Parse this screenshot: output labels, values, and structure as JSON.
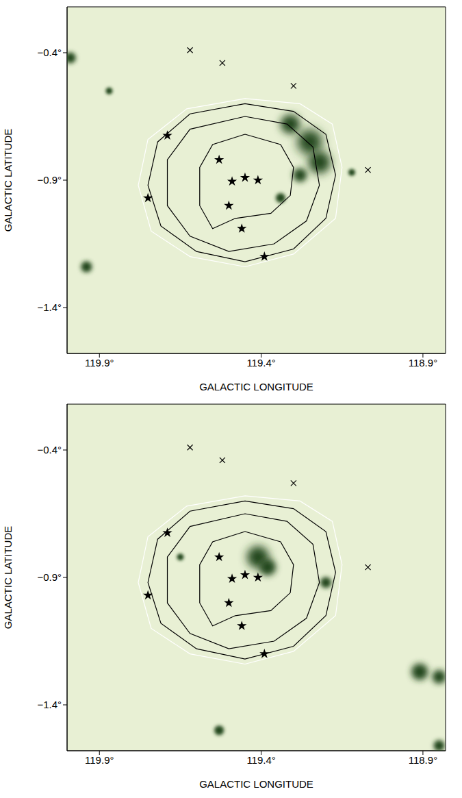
{
  "chart_data": [
    {
      "type": "scatter",
      "x_label": "GALACTIC LONGITUDE",
      "y_label": "GALACTIC LATITUDE",
      "xlim": [
        120.0,
        118.83
      ],
      "ylim": [
        -1.58,
        -0.22
      ],
      "xticks": [
        {
          "value": 119.9,
          "label": "119.9°"
        },
        {
          "value": 119.4,
          "label": "119.4°"
        },
        {
          "value": 118.9,
          "label": "118.9°"
        }
      ],
      "yticks": [
        {
          "value": -0.4,
          "label": "−0.4°"
        },
        {
          "value": -0.9,
          "label": "−0.9°"
        },
        {
          "value": -1.4,
          "label": "−1.4°"
        }
      ],
      "grid": false,
      "series": [
        {
          "type": "bubble",
          "color": "#24461a",
          "x": [
            119.31,
            119.25,
            119.22,
            119.28,
            119.34,
            119.99,
            119.94,
            119.87,
            119.12
          ],
          "values": [
            -0.68,
            -0.75,
            -0.83,
            -0.88,
            -0.97,
            -0.42,
            -1.24,
            -0.55,
            -0.87
          ],
          "size": [
            14,
            18,
            16,
            10,
            7,
            8,
            8,
            5,
            5
          ]
        },
        {
          "type": "line",
          "color": "#ffffff",
          "marker": "none",
          "line_style": "solid",
          "x": [
            119.45,
            119.28,
            119.18,
            119.15,
            119.17,
            119.3,
            119.45,
            119.62,
            119.74,
            119.78,
            119.75,
            119.63,
            119.45
          ],
          "values": [
            -0.58,
            -0.6,
            -0.68,
            -0.85,
            -1.05,
            -1.19,
            -1.24,
            -1.2,
            -1.1,
            -0.92,
            -0.74,
            -0.62,
            -0.58
          ]
        },
        {
          "type": "line",
          "color": "#000000",
          "marker": "none",
          "line_style": "solid",
          "x": [
            119.45,
            119.3,
            119.2,
            119.17,
            119.2,
            119.3,
            119.45,
            119.6,
            119.71,
            119.75,
            119.72,
            119.62,
            119.45
          ],
          "values": [
            -0.6,
            -0.63,
            -0.72,
            -0.88,
            -1.05,
            -1.17,
            -1.22,
            -1.18,
            -1.08,
            -0.92,
            -0.75,
            -0.64,
            -0.6
          ]
        },
        {
          "type": "line",
          "color": "#000000",
          "marker": "none",
          "line_style": "solid",
          "x": [
            119.45,
            119.32,
            119.24,
            119.22,
            119.26,
            119.36,
            119.5,
            119.62,
            119.69,
            119.69,
            119.62,
            119.45
          ],
          "values": [
            -0.65,
            -0.68,
            -0.77,
            -0.92,
            -1.06,
            -1.15,
            -1.18,
            -1.12,
            -1.0,
            -0.82,
            -0.7,
            -0.65
          ]
        },
        {
          "type": "line",
          "color": "#000000",
          "marker": "none",
          "line_style": "solid",
          "x": [
            119.45,
            119.34,
            119.3,
            119.31,
            119.37,
            119.48,
            119.55,
            119.59,
            119.59,
            119.55,
            119.45
          ],
          "values": [
            -0.72,
            -0.76,
            -0.85,
            -0.96,
            -1.03,
            -1.05,
            -1.09,
            -1.0,
            -0.85,
            -0.76,
            -0.72
          ]
        },
        {
          "type": "scatter",
          "color": "#000000",
          "marker": "star",
          "x": [
            119.69,
            119.53,
            119.49,
            119.45,
            119.41,
            119.5,
            119.46,
            119.39,
            119.75
          ],
          "values": [
            -0.725,
            -0.82,
            -0.905,
            -0.89,
            -0.9,
            -1.0,
            -1.09,
            -1.2,
            -0.97
          ]
        },
        {
          "type": "scatter",
          "color": "#000000",
          "marker": "x",
          "x": [
            119.62,
            119.52,
            119.3,
            119.07
          ],
          "values": [
            -0.39,
            -0.44,
            -0.53,
            -0.86
          ]
        }
      ]
    },
    {
      "type": "scatter",
      "x_label": "GALACTIC LONGITUDE",
      "y_label": "GALACTIC LATITUDE",
      "xlim": [
        120.0,
        118.83
      ],
      "ylim": [
        -1.58,
        -0.22
      ],
      "xticks": [
        {
          "value": 119.9,
          "label": "119.9°"
        },
        {
          "value": 119.4,
          "label": "119.4°"
        },
        {
          "value": 118.9,
          "label": "118.9°"
        }
      ],
      "yticks": [
        {
          "value": -0.4,
          "label": "−0.4°"
        },
        {
          "value": -0.9,
          "label": "−0.9°"
        },
        {
          "value": -1.4,
          "label": "−1.4°"
        }
      ],
      "grid": false,
      "series": [
        {
          "type": "bubble",
          "color": "#24461a",
          "x": [
            119.41,
            119.38,
            119.2,
            118.91,
            118.85,
            119.53,
            118.85,
            119.65
          ],
          "values": [
            -0.82,
            -0.86,
            -0.92,
            -1.27,
            -1.29,
            -1.5,
            -1.56,
            -0.82
          ],
          "size": [
            16,
            12,
            8,
            12,
            10,
            7,
            8,
            5
          ]
        },
        {
          "type": "line",
          "color": "#ffffff",
          "marker": "none",
          "line_style": "solid",
          "x": [
            119.45,
            119.28,
            119.18,
            119.15,
            119.17,
            119.3,
            119.45,
            119.62,
            119.74,
            119.78,
            119.75,
            119.63,
            119.45
          ],
          "values": [
            -0.58,
            -0.6,
            -0.68,
            -0.85,
            -1.05,
            -1.19,
            -1.24,
            -1.2,
            -1.1,
            -0.92,
            -0.74,
            -0.62,
            -0.58
          ]
        },
        {
          "type": "line",
          "color": "#000000",
          "marker": "none",
          "line_style": "solid",
          "x": [
            119.45,
            119.3,
            119.2,
            119.17,
            119.2,
            119.3,
            119.45,
            119.6,
            119.71,
            119.75,
            119.72,
            119.62,
            119.45
          ],
          "values": [
            -0.6,
            -0.63,
            -0.72,
            -0.88,
            -1.05,
            -1.17,
            -1.22,
            -1.18,
            -1.08,
            -0.92,
            -0.75,
            -0.64,
            -0.6
          ]
        },
        {
          "type": "line",
          "color": "#000000",
          "marker": "none",
          "line_style": "solid",
          "x": [
            119.45,
            119.32,
            119.24,
            119.22,
            119.26,
            119.36,
            119.5,
            119.62,
            119.69,
            119.69,
            119.62,
            119.45
          ],
          "values": [
            -0.65,
            -0.68,
            -0.77,
            -0.92,
            -1.06,
            -1.15,
            -1.18,
            -1.12,
            -1.0,
            -0.82,
            -0.7,
            -0.65
          ]
        },
        {
          "type": "line",
          "color": "#000000",
          "marker": "none",
          "line_style": "solid",
          "x": [
            119.45,
            119.34,
            119.3,
            119.31,
            119.37,
            119.48,
            119.55,
            119.59,
            119.59,
            119.55,
            119.45
          ],
          "values": [
            -0.72,
            -0.76,
            -0.85,
            -0.96,
            -1.03,
            -1.05,
            -1.09,
            -1.0,
            -0.85,
            -0.76,
            -0.72
          ]
        },
        {
          "type": "scatter",
          "color": "#000000",
          "marker": "star",
          "x": [
            119.69,
            119.53,
            119.49,
            119.45,
            119.41,
            119.5,
            119.46,
            119.39,
            119.75
          ],
          "values": [
            -0.725,
            -0.82,
            -0.905,
            -0.89,
            -0.9,
            -1.0,
            -1.09,
            -1.2,
            -0.97
          ]
        },
        {
          "type": "scatter",
          "color": "#000000",
          "marker": "x",
          "x": [
            119.62,
            119.52,
            119.3,
            119.07
          ],
          "values": [
            -0.39,
            -0.44,
            -0.53,
            -0.86
          ]
        }
      ]
    }
  ]
}
